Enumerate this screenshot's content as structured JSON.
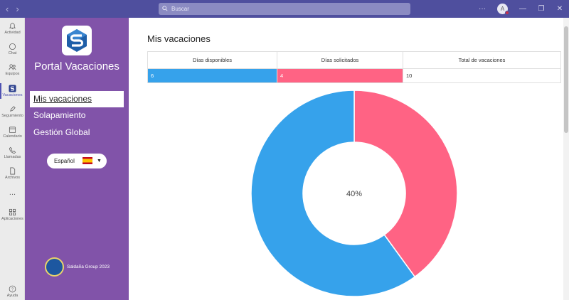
{
  "search": {
    "placeholder": "Buscar"
  },
  "avatar": {
    "initial": "A"
  },
  "rail": [
    {
      "label": "Actividad",
      "icon": "bell-icon"
    },
    {
      "label": "Chat",
      "icon": "chat-icon"
    },
    {
      "label": "Equipos",
      "icon": "teams-icon"
    },
    {
      "label": "Vacaciones",
      "icon": "app-logo-icon",
      "active": true
    },
    {
      "label": "Seguimiento",
      "icon": "pen-icon"
    },
    {
      "label": "Calendario",
      "icon": "calendar-icon"
    },
    {
      "label": "Llamadas",
      "icon": "phone-icon"
    },
    {
      "label": "Archivos",
      "icon": "file-icon"
    },
    {
      "label": "...",
      "icon": "more-icon"
    },
    {
      "label": "Aplicaciones",
      "icon": "apps-icon"
    },
    {
      "label": "Ayuda",
      "icon": "help-icon"
    }
  ],
  "sidebar": {
    "title": "Portal Vacaciones",
    "menu": [
      {
        "label": "Mis vacaciones",
        "active": true
      },
      {
        "label": "Solapamiento"
      },
      {
        "label": "Gestión Global"
      }
    ],
    "language": "Español",
    "footer": "Saldaña Group 2023"
  },
  "main": {
    "title": "Mis vacaciones",
    "headers": [
      "Días disponibles",
      "Días solicitados",
      "Total de vacaciones"
    ],
    "values": [
      "6",
      "4",
      "10"
    ]
  },
  "colors": {
    "available": "#36a2eb",
    "requested": "#ff6384",
    "sidebar": "#8153a9"
  },
  "chart_data": {
    "type": "pie",
    "variant": "doughnut",
    "center_label": "40%",
    "slices": [
      {
        "value": 4,
        "color": "#ff6384"
      },
      {
        "value": 6,
        "color": "#36a2eb"
      }
    ]
  }
}
